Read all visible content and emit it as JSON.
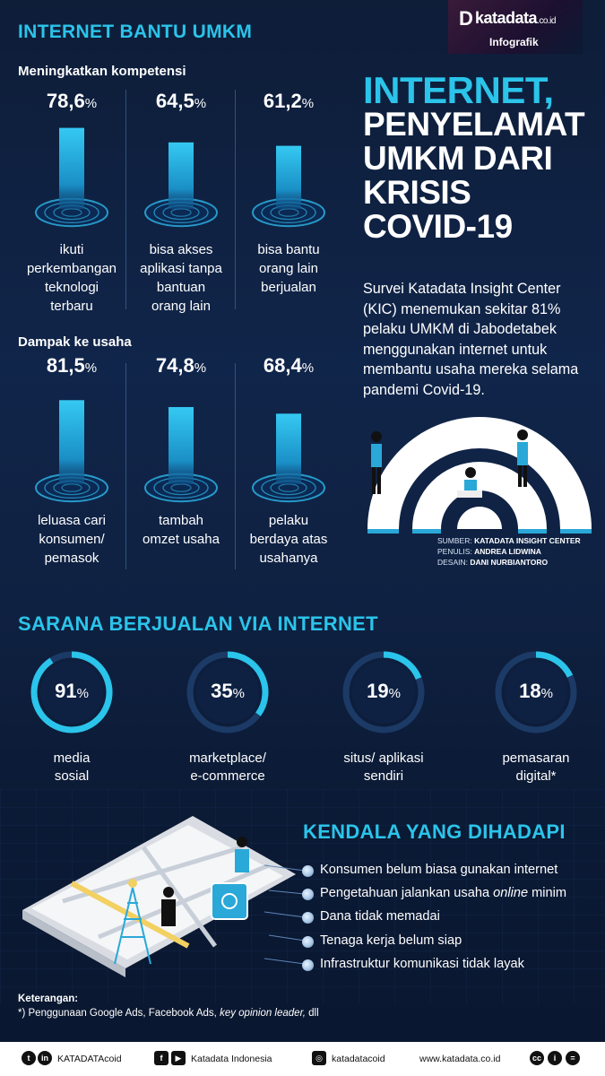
{
  "brand": {
    "logo_mark": "D",
    "logo_name": "katadata",
    "logo_tld": ".co.id",
    "logo_sub": "Infografik"
  },
  "section1": {
    "title": "INTERNET BANTU UMKM"
  },
  "title": {
    "line1": "INTERNET,",
    "line2": "PENYELAMAT",
    "line3": "UMKM DARI",
    "line4": "KRISIS",
    "line5": "COVID-19"
  },
  "intro": "Survei Katadata Insight Center (KIC) menemukan sekitar 81% pelaku UMKM di Jabodetabek menggunakan internet untuk membantu usaha mereka selama pandemi Covid-19.",
  "credits": {
    "source_label": "SUMBER:",
    "source": "KATADATA INSIGHT CENTER",
    "writer_label": "PENULIS:",
    "writer": "ANDREA LIDWINA",
    "design_label": "DESAIN:",
    "design": "DANI NURBIANTORO"
  },
  "chart_data": [
    {
      "type": "bar",
      "title": "Meningkatkan kompetensi",
      "unit": "%",
      "categories": [
        "ikuti perkembangan teknologi terbaru",
        "bisa akses aplikasi tanpa bantuan orang lain",
        "bisa bantu orang lain berjualan"
      ],
      "values": [
        78.6,
        64.5,
        61.2
      ],
      "value_labels": [
        "78,6",
        "64,5",
        "61,2"
      ],
      "label_lines": [
        [
          "ikuti",
          "perkembangan",
          "teknologi",
          "terbaru"
        ],
        [
          "bisa akses",
          "aplikasi tanpa",
          "bantuan",
          "orang lain"
        ],
        [
          "bisa bantu",
          "orang lain",
          "berjualan"
        ]
      ],
      "ylim": [
        0,
        100
      ]
    },
    {
      "type": "bar",
      "title": "Dampak ke usaha",
      "unit": "%",
      "categories": [
        "leluasa cari konsumen/ pemasok",
        "tambah omzet usaha",
        "pelaku berdaya atas usahanya"
      ],
      "values": [
        81.5,
        74.8,
        68.4
      ],
      "value_labels": [
        "81,5",
        "74,8",
        "68,4"
      ],
      "label_lines": [
        [
          "leluasa cari",
          "konsumen/",
          "pemasok"
        ],
        [
          "tambah",
          "omzet usaha"
        ],
        [
          "pelaku",
          "berdaya atas",
          "usahanya"
        ]
      ],
      "ylim": [
        0,
        100
      ]
    },
    {
      "type": "pie",
      "title": "SARANA BERJUALAN VIA INTERNET",
      "unit": "%",
      "categories": [
        "media sosial",
        "marketplace/ e-commerce",
        "situs/ aplikasi sendiri",
        "pemasaran digital*"
      ],
      "values": [
        91,
        35,
        19,
        18
      ],
      "value_labels": [
        "91",
        "35",
        "19",
        "18"
      ],
      "label_lines": [
        [
          "media",
          "sosial"
        ],
        [
          "marketplace/",
          "e-commerce"
        ],
        [
          "situs/ aplikasi",
          "sendiri"
        ],
        [
          "pemasaran",
          "digital*"
        ]
      ]
    }
  ],
  "kendala": {
    "title": "KENDALA YANG DIHADAPI",
    "items": [
      {
        "pre": "Konsumen belum biasa gunakan internet",
        "em": "",
        "post": ""
      },
      {
        "pre": "Pengetahuan jalankan usaha ",
        "em": "online",
        "post": " minim"
      },
      {
        "pre": "Dana tidak memadai",
        "em": "",
        "post": ""
      },
      {
        "pre": "Tenaga kerja belum siap",
        "em": "",
        "post": ""
      },
      {
        "pre": "Infrastruktur komunikasi tidak layak",
        "em": "",
        "post": ""
      }
    ]
  },
  "notes": {
    "heading": "Keterangan:",
    "pre": "*) Penggunaan Google Ads, Facebook Ads, ",
    "em": "key opinion leader,",
    "post": " dll"
  },
  "footer": {
    "social_handle": "KATADATAcoid",
    "fb_yt": "Katadata Indonesia",
    "instagram": "katadatacoid",
    "website": "www.katadata.co.id"
  },
  "colors": {
    "accent": "#2bc4ea",
    "bg": "#0c1a33",
    "bar": "#2aa8d8",
    "ring_track": "#1c3a66"
  }
}
